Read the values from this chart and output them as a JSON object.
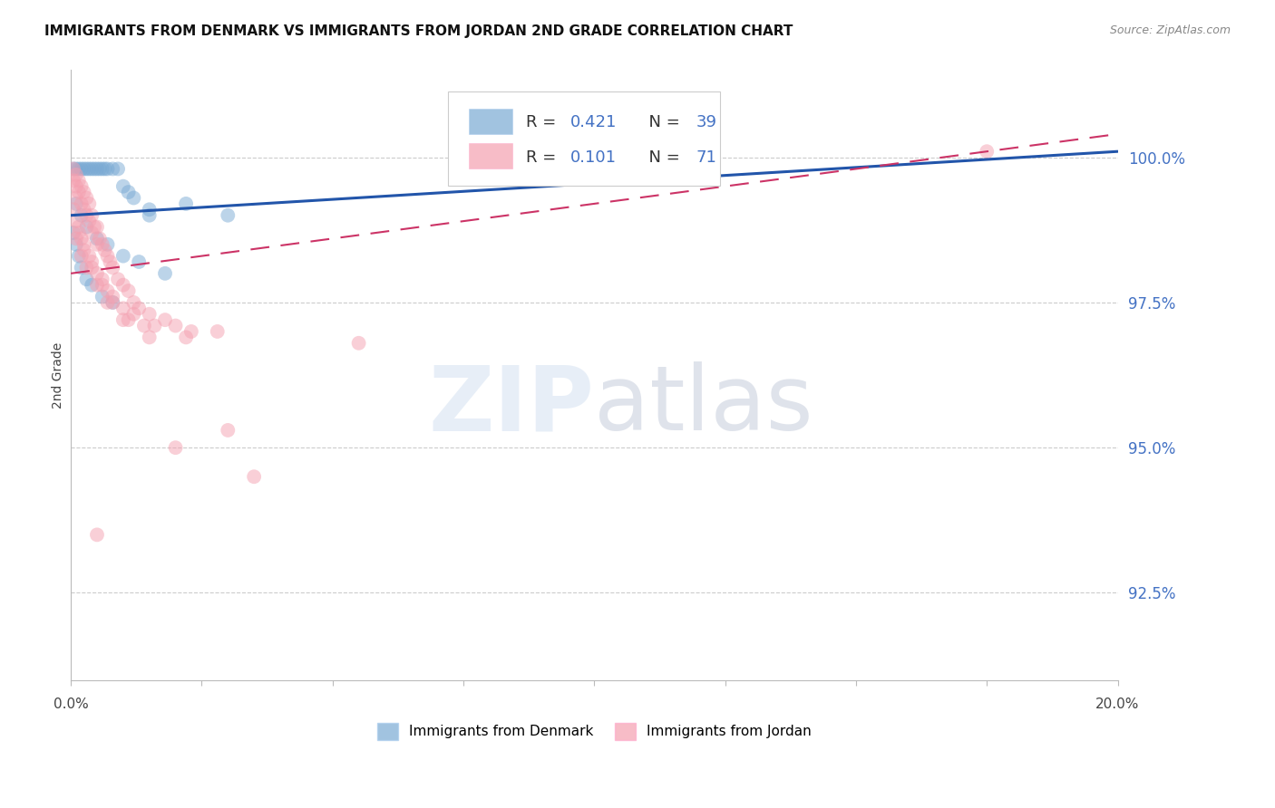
{
  "title": "IMMIGRANTS FROM DENMARK VS IMMIGRANTS FROM JORDAN 2ND GRADE CORRELATION CHART",
  "source": "Source: ZipAtlas.com",
  "ylabel": "2nd Grade",
  "yticks": [
    92.5,
    95.0,
    97.5,
    100.0
  ],
  "xlim": [
    0.0,
    20.0
  ],
  "ylim": [
    91.0,
    101.5
  ],
  "legend_denmark": "Immigrants from Denmark",
  "legend_jordan": "Immigrants from Jordan",
  "R_denmark": 0.421,
  "N_denmark": 39,
  "R_jordan": 0.101,
  "N_jordan": 71,
  "denmark_color": "#7aaad4",
  "jordan_color": "#f4a0b0",
  "denmark_line_color": "#2255aa",
  "jordan_line_color": "#cc3366",
  "denmark_x": [
    0.05,
    0.1,
    0.15,
    0.2,
    0.25,
    0.3,
    0.35,
    0.4,
    0.45,
    0.5,
    0.55,
    0.6,
    0.65,
    0.7,
    0.8,
    0.9,
    1.0,
    1.1,
    1.2,
    1.5,
    0.1,
    0.2,
    0.3,
    0.5,
    0.7,
    1.0,
    1.3,
    1.8,
    2.2,
    3.0,
    0.05,
    0.1,
    0.15,
    0.2,
    0.3,
    0.4,
    0.6,
    0.8,
    1.5
  ],
  "denmark_y": [
    99.8,
    99.8,
    99.8,
    99.8,
    99.8,
    99.8,
    99.8,
    99.8,
    99.8,
    99.8,
    99.8,
    99.8,
    99.8,
    99.8,
    99.8,
    99.8,
    99.5,
    99.4,
    99.3,
    99.0,
    99.2,
    99.0,
    98.8,
    98.6,
    98.5,
    98.3,
    98.2,
    98.0,
    99.2,
    99.0,
    98.7,
    98.5,
    98.3,
    98.1,
    97.9,
    97.8,
    97.6,
    97.5,
    99.1
  ],
  "jordan_x": [
    0.05,
    0.05,
    0.1,
    0.1,
    0.1,
    0.15,
    0.15,
    0.2,
    0.2,
    0.25,
    0.25,
    0.3,
    0.3,
    0.35,
    0.35,
    0.4,
    0.4,
    0.45,
    0.5,
    0.5,
    0.55,
    0.6,
    0.65,
    0.7,
    0.75,
    0.8,
    0.9,
    1.0,
    1.1,
    1.2,
    1.3,
    1.5,
    1.8,
    2.0,
    2.3,
    2.8,
    0.1,
    0.2,
    0.3,
    0.5,
    0.7,
    1.0,
    0.15,
    0.25,
    0.4,
    0.6,
    0.8,
    1.2,
    1.6,
    2.2,
    0.05,
    0.1,
    0.2,
    0.35,
    0.5,
    0.7,
    1.0,
    1.4,
    0.15,
    0.25,
    0.4,
    0.6,
    0.8,
    1.1,
    1.5,
    2.0,
    3.0,
    3.5,
    0.5,
    17.5,
    5.5
  ],
  "jordan_y": [
    99.8,
    99.6,
    99.7,
    99.5,
    99.3,
    99.6,
    99.4,
    99.5,
    99.2,
    99.4,
    99.1,
    99.3,
    99.0,
    99.2,
    98.9,
    99.0,
    98.7,
    98.8,
    98.8,
    98.5,
    98.6,
    98.5,
    98.4,
    98.3,
    98.2,
    98.1,
    97.9,
    97.8,
    97.7,
    97.5,
    97.4,
    97.3,
    97.2,
    97.1,
    97.0,
    97.0,
    98.6,
    98.3,
    98.1,
    97.8,
    97.5,
    97.2,
    98.8,
    98.5,
    98.2,
    97.9,
    97.6,
    97.3,
    97.1,
    96.9,
    99.1,
    98.9,
    98.6,
    98.3,
    98.0,
    97.7,
    97.4,
    97.1,
    98.7,
    98.4,
    98.1,
    97.8,
    97.5,
    97.2,
    96.9,
    95.0,
    95.3,
    94.5,
    93.5,
    100.1,
    96.8
  ],
  "denmark_trend_x0": 0.0,
  "denmark_trend_y0": 99.0,
  "denmark_trend_x1": 20.0,
  "denmark_trend_y1": 100.1,
  "jordan_trend_x0": 0.0,
  "jordan_trend_y0": 98.0,
  "jordan_trend_x1": 20.0,
  "jordan_trend_y1": 100.4
}
